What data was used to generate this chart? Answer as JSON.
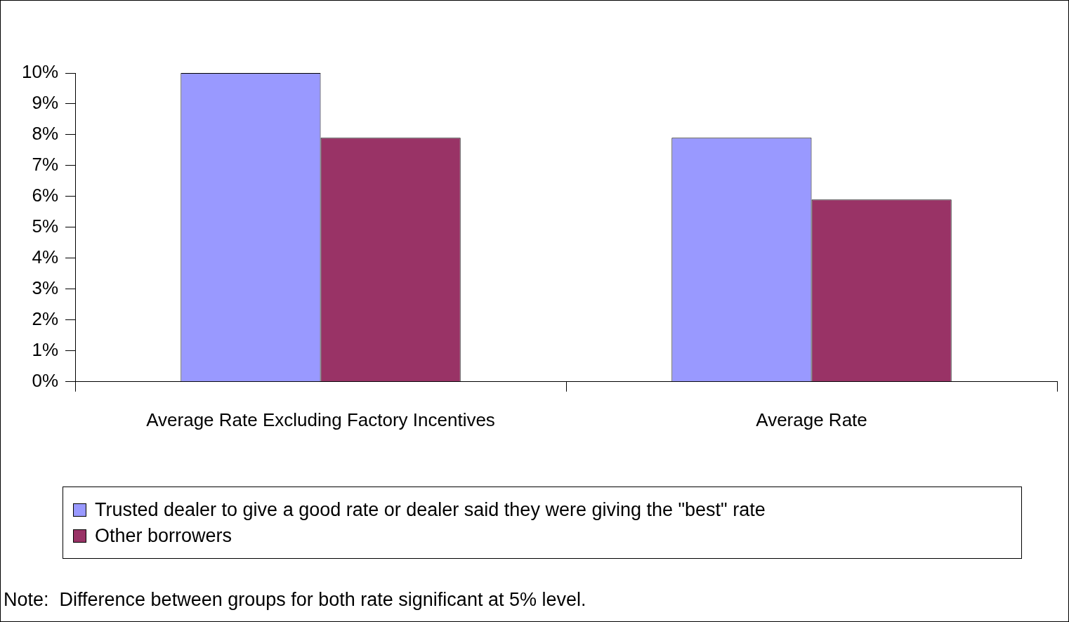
{
  "chart_data": {
    "type": "bar",
    "categories": [
      "Average Rate Excluding Factory Incentives",
      "Average Rate"
    ],
    "series": [
      {
        "name": "Trusted dealer to give a good rate or dealer said they were giving the \"best\" rate",
        "color": "#9999ff",
        "values": [
          10,
          7.9
        ]
      },
      {
        "name": "Other borrowers",
        "color": "#993366",
        "values": [
          7.9,
          5.9
        ]
      }
    ],
    "ylim": [
      0,
      10
    ],
    "yticks": [
      {
        "value": 0,
        "label": "0%"
      },
      {
        "value": 1,
        "label": "1%"
      },
      {
        "value": 2,
        "label": "2%"
      },
      {
        "value": 3,
        "label": "3%"
      },
      {
        "value": 4,
        "label": "4%"
      },
      {
        "value": 5,
        "label": "5%"
      },
      {
        "value": 6,
        "label": "6%"
      },
      {
        "value": 7,
        "label": "7%"
      },
      {
        "value": 8,
        "label": "8%"
      },
      {
        "value": 9,
        "label": "9%"
      },
      {
        "value": 10,
        "label": "10%"
      }
    ],
    "grid": false,
    "legend": "bottom",
    "annotations": [
      "Note:  Difference between groups for both rate significant at 5% level."
    ]
  }
}
